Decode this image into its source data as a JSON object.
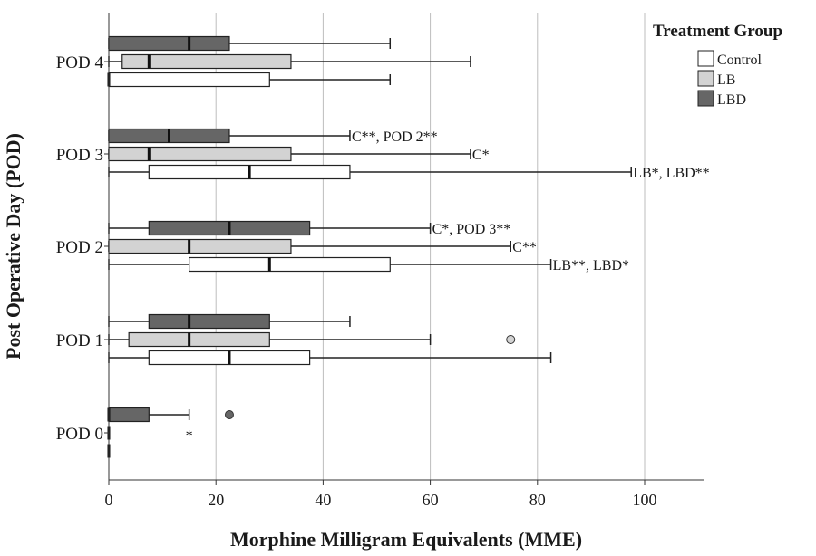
{
  "chart_data": {
    "type": "boxplot",
    "orientation": "horizontal",
    "xlabel": "Morphine Milligram Equivalents (MME)",
    "ylabel": "Post Operative Day (POD)",
    "xlim": [
      0,
      111
    ],
    "xticks": [
      0,
      20,
      40,
      60,
      80,
      100
    ],
    "grid": "vertical",
    "legend": {
      "title": "Treatment Group",
      "position": "top-right",
      "entries": [
        {
          "name": "Control",
          "color": "#ffffff"
        },
        {
          "name": "LB",
          "color": "#d3d3d3"
        },
        {
          "name": "LBD",
          "color": "#666666"
        }
      ]
    },
    "categories": [
      "POD 4",
      "POD 3",
      "POD 2",
      "POD 1",
      "POD 0"
    ],
    "groups": [
      {
        "category": "POD 4",
        "boxes": [
          {
            "series": "LBD",
            "min": 0,
            "q1": 0,
            "median": 15,
            "q3": 22.5,
            "max": 52.5
          },
          {
            "series": "LB",
            "min": 0,
            "q1": 2.5,
            "median": 7.5,
            "q3": 34,
            "max": 67.5
          },
          {
            "series": "Control",
            "min": 0,
            "q1": 0,
            "median": 0,
            "q3": 30,
            "max": 52.5
          }
        ]
      },
      {
        "category": "POD 3",
        "boxes": [
          {
            "series": "LBD",
            "min": 0,
            "q1": 0,
            "median": 11.25,
            "q3": 22.5,
            "max": 45,
            "annotation": "C**, POD 2**"
          },
          {
            "series": "LB",
            "min": 0,
            "q1": 0,
            "median": 7.5,
            "q3": 34,
            "max": 67.5,
            "annotation": "C*"
          },
          {
            "series": "Control",
            "min": 0,
            "q1": 7.5,
            "median": 26.25,
            "q3": 45,
            "max": 97.5,
            "annotation": "LB*, LBD**"
          }
        ]
      },
      {
        "category": "POD 2",
        "boxes": [
          {
            "series": "LBD",
            "min": 0,
            "q1": 7.5,
            "median": 22.5,
            "q3": 37.5,
            "max": 60,
            "annotation": "C*, POD 3**"
          },
          {
            "series": "LB",
            "min": 0,
            "q1": 0,
            "median": 15,
            "q3": 34,
            "max": 75,
            "annotation": "C**"
          },
          {
            "series": "Control",
            "min": 0,
            "q1": 15,
            "median": 30,
            "q3": 52.5,
            "max": 82.5,
            "annotation": "LB**, LBD*"
          }
        ]
      },
      {
        "category": "POD 1",
        "boxes": [
          {
            "series": "LBD",
            "min": 0,
            "q1": 7.5,
            "median": 15,
            "q3": 30,
            "max": 45
          },
          {
            "series": "LB",
            "min": 0,
            "q1": 3.75,
            "median": 15,
            "q3": 30,
            "max": 60,
            "outliers": [
              75
            ]
          },
          {
            "series": "Control",
            "min": 0,
            "q1": 7.5,
            "median": 22.5,
            "q3": 37.5,
            "max": 82.5
          }
        ]
      },
      {
        "category": "POD 0",
        "boxes": [
          {
            "series": "LBD",
            "min": 0,
            "q1": 0,
            "median": 0,
            "q3": 7.5,
            "max": 15,
            "outliers": [
              22.5
            ]
          },
          {
            "series": "LB",
            "min": 0,
            "q1": 0,
            "median": 0,
            "q3": 0,
            "max": 0,
            "extremes": [
              15
            ]
          },
          {
            "series": "Control",
            "min": 0,
            "q1": 0,
            "median": 0,
            "q3": 0,
            "max": 0
          }
        ]
      }
    ]
  }
}
